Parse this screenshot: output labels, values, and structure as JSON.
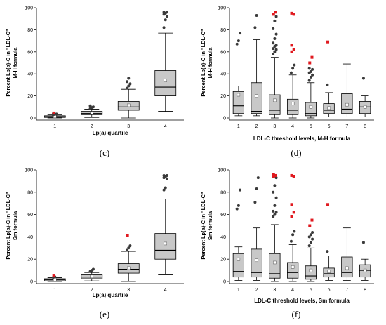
{
  "colors": {
    "box": "#c8c8c8",
    "outlier": "#3a3a3a",
    "extreme": "#e0191f",
    "mean": "#ffffff"
  },
  "chart_data": [
    {
      "id": "c",
      "letter": "(c)",
      "type": "box",
      "title": "",
      "ylabel": [
        "Percent Lp(a)-C in \"LDL-C\"",
        "M-H formula"
      ],
      "xlabel": "Lp(a) quartile",
      "ylim": [
        0,
        100
      ],
      "yticks": [
        0,
        20,
        40,
        60,
        80,
        100
      ],
      "categories": [
        "1",
        "2",
        "3",
        "4"
      ],
      "boxes": [
        {
          "min": 0,
          "q1": 0.5,
          "median": 1.2,
          "q3": 2,
          "max": 3,
          "mean": 1.4,
          "outliers": [
            3,
            3.3,
            3.6,
            4
          ],
          "extremes": [
            4.5
          ]
        },
        {
          "min": 0.5,
          "q1": 3,
          "median": 4,
          "q3": 6,
          "max": 8,
          "mean": 4.5,
          "outliers": [
            8.5,
            9.5,
            10,
            11
          ],
          "extremes": []
        },
        {
          "min": 0,
          "q1": 7,
          "median": 10,
          "q3": 15,
          "max": 26,
          "mean": 11.5,
          "outliers": [
            27,
            29,
            31,
            33,
            36
          ],
          "extremes": []
        },
        {
          "min": 6,
          "q1": 20,
          "median": 28,
          "q3": 43,
          "max": 77,
          "mean": 34,
          "outliers": [
            82,
            89,
            92,
            94,
            95,
            96,
            96
          ],
          "extremes": []
        }
      ]
    },
    {
      "id": "d",
      "letter": "(d)",
      "type": "box",
      "title": "",
      "ylabel": [
        "Percent Lp(a)-C in \"LDL-C\"",
        "M-H formula"
      ],
      "xlabel": "LDL-C threshold levels, M-H formula",
      "ylim": [
        0,
        100
      ],
      "yticks": [
        0,
        20,
        40,
        60,
        80,
        100
      ],
      "categories": [
        "1",
        "2",
        "3",
        "4",
        "5",
        "6",
        "7",
        "8"
      ],
      "boxes": [
        {
          "min": 2,
          "q1": 4,
          "median": 11,
          "q3": 24,
          "max": 29,
          "mean": 21,
          "outliers": [
            67,
            70,
            77
          ],
          "extremes": []
        },
        {
          "min": 2,
          "q1": 4,
          "median": 6,
          "q3": 32,
          "max": 71,
          "mean": 20,
          "outliers": [
            82,
            93
          ],
          "extremes": []
        },
        {
          "min": 0,
          "q1": 3,
          "median": 7,
          "q3": 21,
          "max": 55,
          "mean": 16,
          "outliers": [
            58,
            60,
            62,
            63,
            65,
            66,
            68,
            72,
            76,
            81,
            88,
            92
          ],
          "extremes": [
            94,
            96
          ]
        },
        {
          "min": 0,
          "q1": 3,
          "median": 7,
          "q3": 17,
          "max": 39,
          "mean": 13,
          "outliers": [
            41,
            45,
            48
          ],
          "extremes": [
            60,
            62,
            66,
            94,
            95
          ]
        },
        {
          "min": 0,
          "q1": 2,
          "median": 4,
          "q3": 14,
          "max": 32,
          "mean": 10,
          "outliers": [
            34,
            37,
            39,
            41,
            42,
            44,
            45
          ],
          "extremes": [
            50,
            55
          ]
        },
        {
          "min": 1,
          "q1": 4,
          "median": 7,
          "q3": 13,
          "max": 23,
          "mean": 9,
          "outliers": [
            30
          ],
          "extremes": [
            69
          ]
        },
        {
          "min": 1,
          "q1": 4,
          "median": 8,
          "q3": 22,
          "max": 49,
          "mean": 12,
          "outliers": [],
          "extremes": []
        },
        {
          "min": 1,
          "q1": 4,
          "median": 10,
          "q3": 15,
          "max": 20,
          "mean": 10,
          "outliers": [
            36
          ],
          "extremes": []
        }
      ]
    },
    {
      "id": "e",
      "letter": "(e)",
      "type": "box",
      "title": "",
      "ylabel": [
        "Percent Lp(a)-C in \"LDL-C\"",
        "Sm formula"
      ],
      "xlabel": "Lp(a) quartile",
      "ylim": [
        0,
        100
      ],
      "yticks": [
        0,
        20,
        40,
        60,
        80,
        100
      ],
      "categories": [
        "1",
        "2",
        "3",
        "4"
      ],
      "boxes": [
        {
          "min": 0,
          "q1": 0.5,
          "median": 1.5,
          "q3": 2.5,
          "max": 3.5,
          "mean": 1.7,
          "outliers": [
            3.8,
            4.2
          ],
          "extremes": [
            5
          ]
        },
        {
          "min": 0.5,
          "q1": 2.5,
          "median": 4,
          "q3": 6,
          "max": 8,
          "mean": 4.5,
          "outliers": [
            9,
            10,
            11
          ],
          "extremes": []
        },
        {
          "min": 0,
          "q1": 7.5,
          "median": 11,
          "q3": 16,
          "max": 27,
          "mean": 12,
          "outliers": [
            28,
            30,
            32
          ],
          "extremes": [
            41
          ]
        },
        {
          "min": 6,
          "q1": 20,
          "median": 28,
          "q3": 43,
          "max": 74,
          "mean": 34,
          "outliers": [
            82,
            84,
            92,
            93,
            94,
            95,
            95
          ],
          "extremes": []
        }
      ]
    },
    {
      "id": "f",
      "letter": "(f)",
      "type": "box",
      "title": "",
      "ylabel": [
        "Percent Lp(a)-C in \"LDL-C\"",
        "Sm formula"
      ],
      "xlabel": "LDL-C threshold levels, Sm formula",
      "ylim": [
        0,
        100
      ],
      "yticks": [
        0,
        20,
        40,
        60,
        80,
        100
      ],
      "categories": [
        "1",
        "2",
        "3",
        "4",
        "5",
        "6",
        "7",
        "8"
      ],
      "boxes": [
        {
          "min": 1,
          "q1": 4,
          "median": 9,
          "q3": 25,
          "max": 31,
          "mean": 20,
          "outliers": [
            65,
            68,
            82
          ],
          "extremes": []
        },
        {
          "min": 1,
          "q1": 4,
          "median": 8,
          "q3": 29,
          "max": 48,
          "mean": 19,
          "outliers": [
            71,
            83,
            93
          ],
          "extremes": []
        },
        {
          "min": 0,
          "q1": 3,
          "median": 7,
          "q3": 25,
          "max": 51,
          "mean": 17,
          "outliers": [
            58,
            60,
            62,
            63,
            68,
            75,
            80,
            86,
            93
          ],
          "extremes": [
            94,
            95,
            96
          ]
        },
        {
          "min": 0,
          "q1": 3,
          "median": 8,
          "q3": 17,
          "max": 33,
          "mean": 13,
          "outliers": [
            36,
            42,
            45
          ],
          "extremes": [
            58,
            62,
            69,
            94,
            95
          ]
        },
        {
          "min": 0,
          "q1": 2,
          "median": 5,
          "q3": 14,
          "max": 30,
          "mean": 10,
          "outliers": [
            32,
            35,
            38,
            40,
            42,
            44
          ],
          "extremes": [
            50,
            55
          ]
        },
        {
          "min": 1,
          "q1": 4,
          "median": 7,
          "q3": 12,
          "max": 23,
          "mean": 9,
          "outliers": [
            27
          ],
          "extremes": [
            69
          ]
        },
        {
          "min": 1,
          "q1": 4,
          "median": 8,
          "q3": 22,
          "max": 48,
          "mean": 12,
          "outliers": [],
          "extremes": []
        },
        {
          "min": 1,
          "q1": 4,
          "median": 10,
          "q3": 15,
          "max": 20,
          "mean": 10,
          "outliers": [
            35
          ],
          "extremes": []
        }
      ]
    }
  ]
}
